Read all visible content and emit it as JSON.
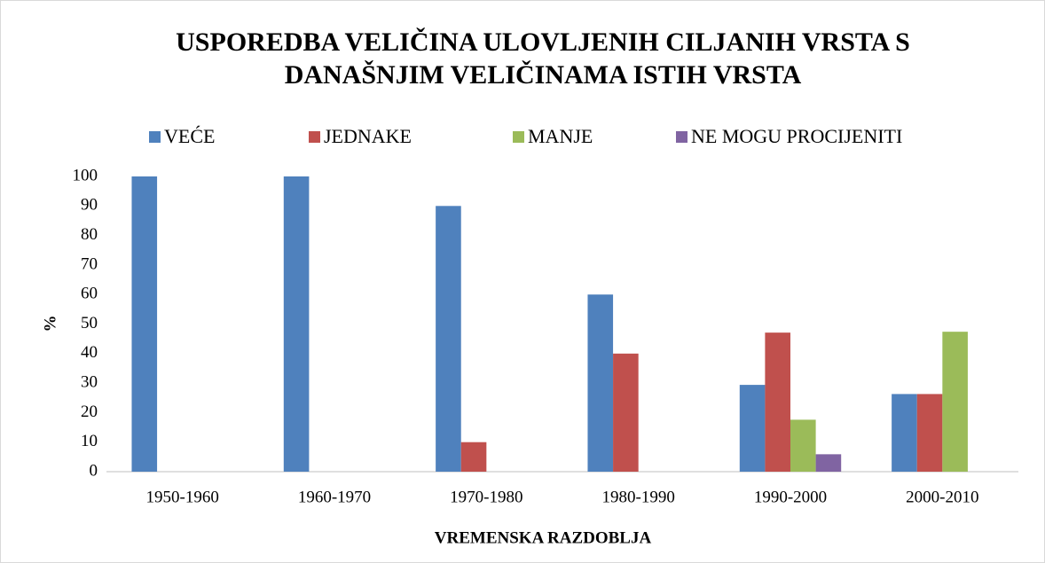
{
  "chart_data": {
    "type": "bar",
    "title": [
      "USPOREDBA VELIČINA ULOVLJENIH CILJANIH VRSTA S",
      "DANAŠNJIM VELIČINAMA ISTIH VRSTA"
    ],
    "x_label": "VREMENSKA RAZDOBLJA",
    "y_label": "%",
    "categories": [
      "1950-1960",
      "1960-1970",
      "1970-1980",
      "1980-1990",
      "1990-2000",
      "2000-2010"
    ],
    "series": [
      {
        "name": "VEĆE",
        "color": "#4f81bd",
        "values": [
          100,
          100,
          90,
          60,
          29.4,
          26.3
        ]
      },
      {
        "name": "JEDNAKE",
        "color": "#c0504d",
        "values": [
          0,
          0,
          10,
          40,
          47.1,
          26.3
        ]
      },
      {
        "name": "MANJE",
        "color": "#9bbb59",
        "values": [
          0,
          0,
          0,
          0,
          17.6,
          47.4
        ]
      },
      {
        "name": "NE MOGU PROCIJENITI",
        "color": "#8064a2",
        "values": [
          0,
          0,
          0,
          0,
          5.9,
          0
        ]
      }
    ],
    "ylim": [
      0,
      100
    ],
    "yticks": [
      0,
      10,
      20,
      30,
      40,
      50,
      60,
      70,
      80,
      90,
      100
    ],
    "grid": false,
    "legend": "top"
  }
}
